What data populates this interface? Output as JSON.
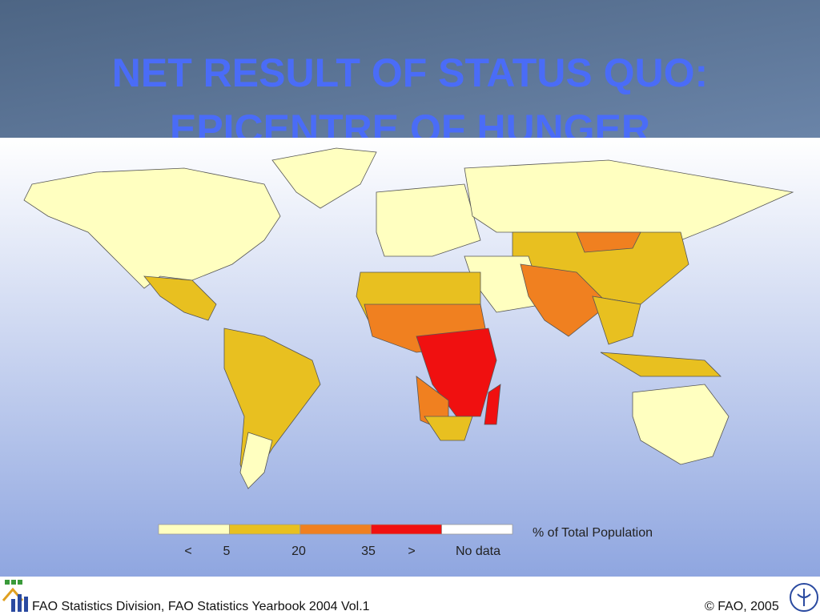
{
  "header": {
    "title_line1": "NET RESULT OF STATUS QUO:",
    "title_line2": "EPICENTRE OF HUNGER"
  },
  "legend": {
    "title": "% of Total Population",
    "labels": [
      "<",
      5,
      20,
      35,
      ">",
      "No data"
    ],
    "colors": [
      "#ffffc0",
      "#e8c020",
      "#f08020",
      "#f01010",
      "#ffffff"
    ]
  },
  "footer": {
    "source": "FAO Statistics Division, FAO Statistics Yearbook 2004 Vol.1",
    "copyright": "© FAO, 2005"
  }
}
